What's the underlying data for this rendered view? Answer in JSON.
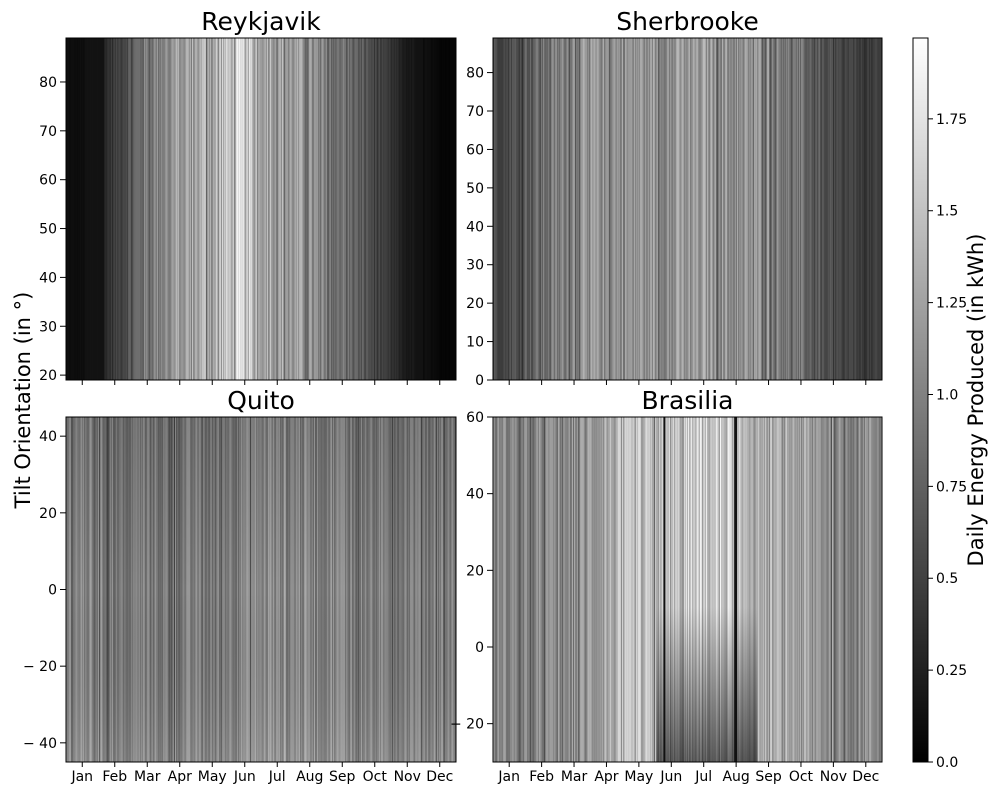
{
  "chart_data": {
    "type": "heatmap",
    "ylabel": "Tilt Orientation (in °)",
    "xlabel": "",
    "colormap": "gray",
    "x_categories": [
      "Jan",
      "Feb",
      "Mar",
      "Apr",
      "May",
      "Jun",
      "Jul",
      "Aug",
      "Sep",
      "Oct",
      "Nov",
      "Dec"
    ],
    "colorbar": {
      "label": "Daily Energy Produced (in kWh)",
      "range": [
        0.0,
        1.97
      ],
      "ticks": [
        0.0,
        0.25,
        0.5,
        0.75,
        1.0,
        1.25,
        1.5,
        1.75
      ],
      "tick_labels": [
        "0.0",
        "0.25",
        "0.5",
        "0.75",
        "1.0",
        "1.25",
        "1.5",
        "1.75"
      ]
    },
    "panels": [
      {
        "title": "Reykjavik",
        "ylim": [
          19,
          89
        ],
        "yticks": [
          20,
          30,
          40,
          50,
          60,
          70,
          80
        ],
        "ytick_labels": [
          "20",
          "30",
          "40",
          "50",
          "60",
          "70",
          "80"
        ],
        "show_x_labels": false,
        "monthly_mean_kwh": [
          0.1,
          0.45,
          0.95,
          1.2,
          1.4,
          1.55,
          1.3,
          1.1,
          0.9,
          0.55,
          0.2,
          0.05
        ]
      },
      {
        "title": "Sherbrooke",
        "ylim": [
          0,
          89
        ],
        "yticks": [
          0,
          10,
          20,
          30,
          40,
          50,
          60,
          70,
          80
        ],
        "ytick_labels": [
          "0",
          "10",
          "20",
          "30",
          "40",
          "50",
          "60",
          "70",
          "80"
        ],
        "show_x_labels": false,
        "monthly_mean_kwh": [
          0.6,
          0.85,
          1.1,
          1.15,
          1.15,
          1.15,
          1.2,
          1.15,
          1.1,
          0.85,
          0.55,
          0.45
        ]
      },
      {
        "title": "Quito",
        "ylim": [
          -45,
          45
        ],
        "yticks": [
          -40,
          -20,
          0,
          20,
          40
        ],
        "ytick_labels": [
          "− 40",
          "− 20",
          "0",
          "20",
          "40"
        ],
        "show_x_labels": true,
        "monthly_mean_kwh": [
          1.05,
          0.95,
          1.0,
          0.95,
          1.0,
          1.05,
          1.1,
          1.05,
          1.05,
          1.0,
          1.0,
          1.0
        ]
      },
      {
        "title": "Brasilia",
        "ylim": [
          -30,
          60
        ],
        "yticks": [
          -20,
          0,
          20,
          40,
          60
        ],
        "ytick_labels": [
          "− 20",
          "0",
          "20",
          "40",
          "60"
        ],
        "show_x_labels": true,
        "monthly_mean_kwh": [
          1.05,
          1.05,
          1.1,
          1.3,
          1.4,
          1.45,
          1.55,
          1.55,
          1.3,
          1.25,
          1.1,
          1.1
        ]
      }
    ]
  }
}
